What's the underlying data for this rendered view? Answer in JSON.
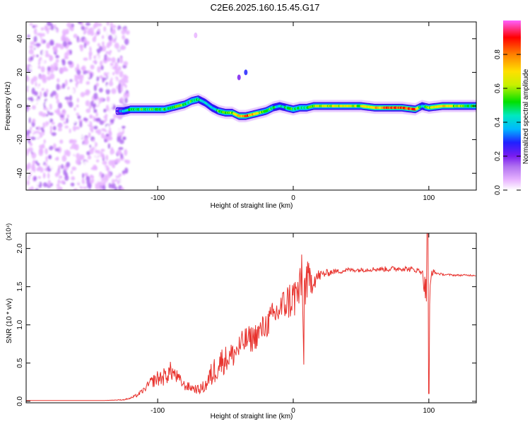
{
  "figure_title": "C2E6.2025.160.15.45.G17",
  "colors": {
    "line": "#e8332e",
    "axis": "#000000",
    "background": "#ffffff",
    "colorbar": [
      "#ffffff",
      "#e8b4ff",
      "#b070f0",
      "#7a1cf0",
      "#2020ff",
      "#00b8ff",
      "#00e8c0",
      "#00e000",
      "#c8f000",
      "#ffe000",
      "#ff8000",
      "#ff0000",
      "#ff60ff"
    ]
  },
  "chart_data": [
    {
      "type": "heatmap",
      "title": "C2E6.2025.160.15.45.G17",
      "xlabel": "Height of straight line (km)",
      "ylabel": "Frequency (Hz)",
      "xlim": [
        -197,
        135
      ],
      "ylim": [
        -50,
        50
      ],
      "x_ticks": [
        -100,
        0,
        100
      ],
      "x_tick_labels": [
        "-100",
        "0",
        "100"
      ],
      "y_ticks": [
        -40,
        -20,
        0,
        20,
        40
      ],
      "y_tick_labels": [
        "-40",
        "-20",
        "0",
        "20",
        "40"
      ],
      "colorbar": {
        "label": "Normalized spectral amplitude",
        "range": [
          0,
          1
        ],
        "ticks": [
          0.0,
          0.2,
          0.4,
          0.6,
          0.8
        ],
        "tick_labels": [
          "0.0",
          "0.2",
          "0.4",
          "0.6",
          "0.8"
        ]
      },
      "noise_region_x": [
        -197,
        -122
      ],
      "signal_track": {
        "x": [
          -130,
          -125,
          -120,
          -115,
          -110,
          -105,
          -100,
          -95,
          -90,
          -85,
          -80,
          -75,
          -70,
          -65,
          -60,
          -55,
          -50,
          -45,
          -40,
          -35,
          -30,
          -25,
          -20,
          -15,
          -10,
          -5,
          0,
          5,
          10,
          15,
          20,
          30,
          40,
          50,
          60,
          70,
          80,
          90,
          95,
          100,
          110,
          120,
          135
        ],
        "freq": [
          -3,
          -3,
          -2,
          -2,
          -2,
          -2,
          -2,
          -2,
          -1,
          0,
          1,
          3,
          4,
          2,
          -1,
          -3,
          -4,
          -4,
          -6,
          -6,
          -5,
          -4,
          -3,
          -1,
          0,
          -1,
          -2,
          -1,
          -1,
          0,
          0,
          0,
          0,
          0,
          -1,
          -1,
          -1,
          -2,
          0,
          -1,
          0,
          0,
          0
        ],
        "amplitude": [
          0.3,
          0.5,
          0.6,
          0.6,
          0.6,
          0.6,
          0.6,
          0.6,
          0.6,
          0.7,
          0.6,
          0.6,
          0.6,
          0.5,
          0.5,
          0.6,
          0.7,
          0.7,
          0.8,
          0.9,
          0.8,
          0.7,
          0.6,
          0.6,
          0.5,
          0.6,
          0.6,
          0.6,
          0.6,
          0.7,
          0.7,
          0.7,
          0.7,
          0.7,
          0.8,
          0.9,
          0.9,
          0.9,
          0.5,
          0.7,
          0.8,
          0.7,
          0.6
        ]
      },
      "isolated_features": [
        {
          "x": -35,
          "freq": 20,
          "amplitude": 0.35
        },
        {
          "x": -40,
          "freq": 17,
          "amplitude": 0.25
        },
        {
          "x": -72,
          "freq": 42,
          "amplitude": 0.1
        }
      ]
    },
    {
      "type": "line",
      "xlabel": "Height of straight line (km)",
      "ylabel": "SNR (10 * v/v)",
      "y_multiplier_label": "(x10⁴)",
      "xlim": [
        -197,
        135
      ],
      "ylim": [
        -0.02,
        2.2
      ],
      "x_ticks": [
        -100,
        0,
        100
      ],
      "x_tick_labels": [
        "-100",
        "0",
        "100"
      ],
      "y_ticks": [
        0.0,
        0.5,
        1.0,
        1.5,
        2.0
      ],
      "y_tick_labels": [
        "0.0",
        "0.5",
        "1.0",
        "1.5",
        "2.0"
      ],
      "series": [
        {
          "name": "SNR",
          "x": [
            -197,
            -180,
            -160,
            -140,
            -125,
            -120,
            -115,
            -110,
            -105,
            -100,
            -95,
            -90,
            -85,
            -80,
            -75,
            -70,
            -65,
            -60,
            -55,
            -50,
            -45,
            -40,
            -35,
            -30,
            -25,
            -20,
            -15,
            -10,
            -5,
            0,
            5,
            10,
            15,
            20,
            25,
            30,
            35,
            40,
            50,
            60,
            70,
            80,
            90,
            95,
            98,
            100,
            102,
            105,
            110,
            120,
            135
          ],
          "y": [
            0.01,
            0.01,
            0.01,
            0.01,
            0.02,
            0.04,
            0.08,
            0.15,
            0.25,
            0.3,
            0.32,
            0.4,
            0.3,
            0.2,
            0.18,
            0.15,
            0.2,
            0.35,
            0.5,
            0.55,
            0.6,
            0.7,
            0.8,
            0.82,
            0.9,
            1.0,
            1.1,
            1.2,
            1.3,
            1.35,
            1.45,
            1.55,
            1.6,
            1.65,
            1.68,
            1.7,
            1.7,
            1.72,
            1.72,
            1.73,
            1.73,
            1.74,
            1.72,
            1.7,
            1.4,
            1.1,
            1.7,
            1.68,
            1.66,
            1.65,
            1.65
          ],
          "noise": [
            0,
            0,
            0,
            0,
            0.01,
            0.02,
            0.04,
            0.06,
            0.12,
            0.18,
            0.2,
            0.22,
            0.15,
            0.1,
            0.1,
            0.1,
            0.15,
            0.3,
            0.35,
            0.3,
            0.3,
            0.3,
            0.3,
            0.3,
            0.3,
            0.3,
            0.35,
            0.35,
            0.4,
            0.5,
            0.5,
            0.5,
            0.25,
            0.12,
            0.08,
            0.06,
            0.05,
            0.05,
            0.05,
            0.05,
            0.06,
            0.06,
            0.06,
            0.06,
            0.4,
            0.6,
            0.1,
            0.03,
            0.02,
            0.02,
            0.02
          ]
        }
      ]
    }
  ]
}
